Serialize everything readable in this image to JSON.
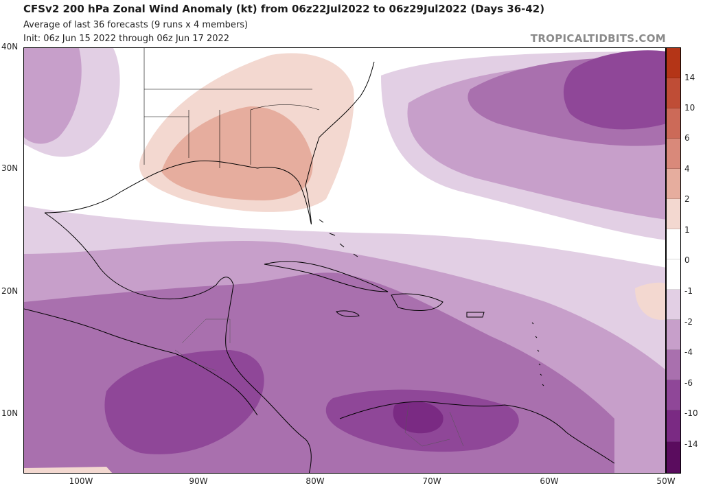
{
  "header": {
    "title": "CFSv2 200 hPa Zonal Wind Anomaly (kt) from 06z22Jul2022 to 06z29Jul2022 (Days 36-42)",
    "subtitle1": "Average of last 36 forecasts (9 runs x 4 members)",
    "subtitle2": "Init: 06z Jun 15 2022 through 06z Jun 17 2022",
    "credit": "TROPICALTIDBITS.COM"
  },
  "map": {
    "region": "Gulf of Mexico, Caribbean Sea and western North Atlantic",
    "lat_labels": [
      "40N",
      "30N",
      "20N",
      "10N"
    ],
    "lon_labels": [
      "100W",
      "90W",
      "80W",
      "70W",
      "60W",
      "50W"
    ],
    "colors": {
      "neg14": "#5a0c5e",
      "neg10": "#7a2a83",
      "neg6": "#8f4798",
      "neg4": "#a970ae",
      "neg2": "#c79fca",
      "neg1": "#e2cfe4",
      "zero": "#ffffff",
      "pos1": "#f3d8d0",
      "pos2": "#e6ad9e",
      "pos4": "#d9897a",
      "pos6": "#cc6a58",
      "pos10": "#bf4d36",
      "pos14": "#b43517"
    }
  },
  "colorbar": {
    "labels": [
      "14",
      "10",
      "6",
      "4",
      "2",
      "1",
      "0",
      "-1",
      "-2",
      "-4",
      "-6",
      "-10",
      "-14"
    ],
    "segments": [
      "#b43517",
      "#bf4d36",
      "#cc6a58",
      "#d9897a",
      "#e6ad9e",
      "#f3d8d0",
      "#ffffff",
      "#ffffff",
      "#e2cfe4",
      "#c79fca",
      "#a970ae",
      "#8f4798",
      "#7a2a83",
      "#5a0c5e"
    ]
  }
}
